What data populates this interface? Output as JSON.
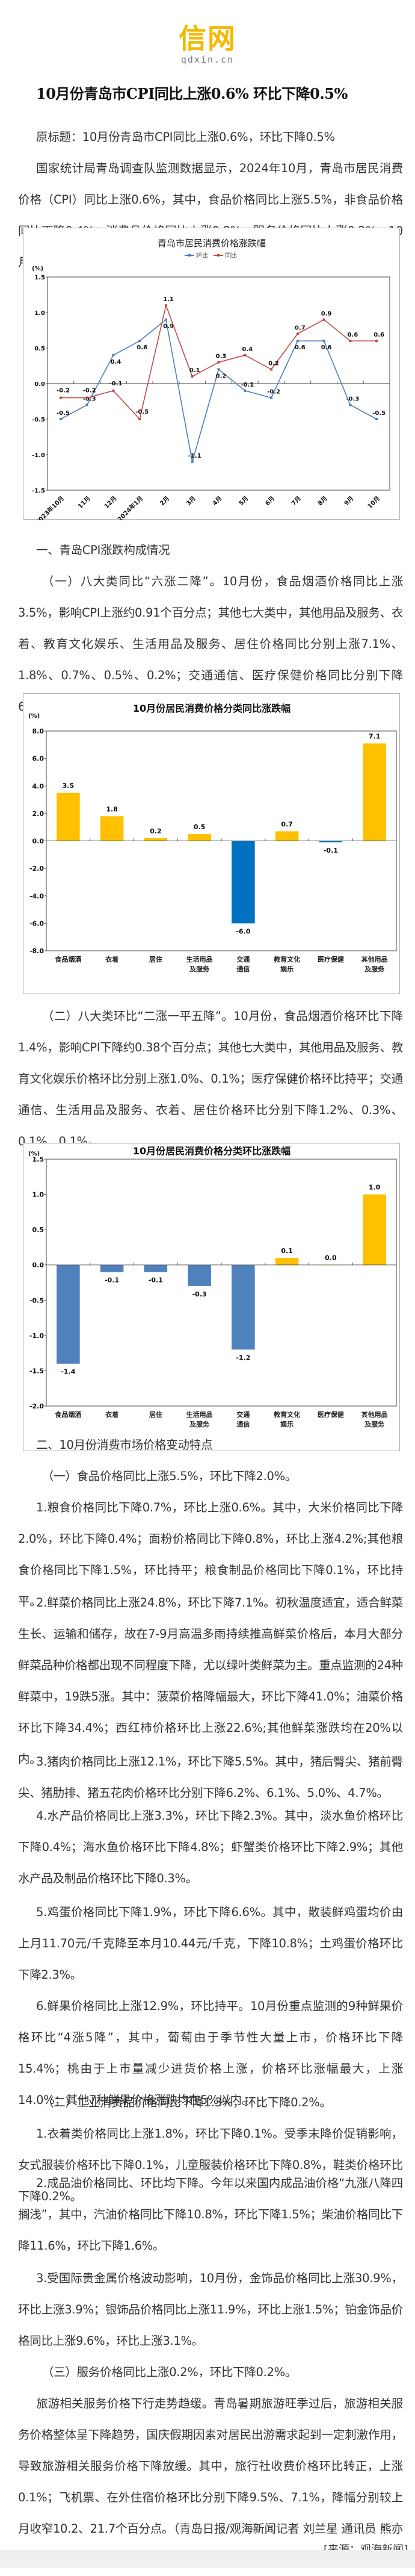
{
  "logo": {
    "mark": "信网",
    "domain": "qdxin.cn",
    "color": "#f5b800"
  },
  "article": {
    "title": "10月份青岛市CPI同比上涨0.6% 环比下降0.5%",
    "original_title": "原标题：10月份青岛市CPI同比上涨0.6%，环比下降0.5%",
    "intro": "国家统计局青岛调查队监测数据显示，2024年10月，青岛市居民消费价格（CPI）同比上涨0.6%，其中，食品价格同比上涨5.5%，非食品价格同比下降0.4%；消费品价格同比上涨0.8%，服务价格同比上涨0.2%。10月份青岛市CPI环比下降0.5%。",
    "section1_heading": "一、青岛CPI涨跌构成情况",
    "section1_p1": "（一）八大类同比“六涨二降”。10月份，食品烟酒价格同比上涨3.5%，影响CPI上涨约0.91个百分点；其他七大类中，其他用品及服务、衣着、教育文化娱乐、生活用品及服务、居住价格同比分别上涨7.1%、1.8%、0.7%、0.5%、0.2%；交通通信、医疗保健价格同比分别下降6.0%、0.1%。",
    "section1_p2": "（二）八大类环比“二涨一平五降”。10月份，食品烟酒价格环比下降1.4%，影响CPI下降约0.38个百分点；其他七大类中，其他用品及服务、教育文化娱乐价格环比分别上涨1.0%、0.1%；医疗保健价格环比持平；交通通信、生活用品及服务、衣着、居住价格环比分别下降1.2%、0.3%、0.1%、0.1%。",
    "section2_heading": "二、10月份消费市场价格变动特点",
    "food_heading": "（一）食品价格同比上涨5.5%，环比下降2.0%。",
    "food_1": "1.粮食价格同比下降0.7%，环比上涨0.6%。其中，大米价格同比下降2.0%，环比下降0.4%；面粉价格同比下降0.8%，环比上涨4.2%;其他粮食价格同比下降1.5%，环比持平；粮食制品价格同比下降0.1%，环比持平。",
    "food_2": "2.鲜菜价格同比上涨24.8%，环比下降7.1%。初秋温度适宜，适合鲜菜生长、运输和储存，故在7-9月高温多雨持续推高鲜菜价格后，本月大部分鲜菜品种价格都出现不同程度下降，尤以绿叶类鲜菜为主。重点监测的24种鲜菜中，19跌5涨。其中：菠菜价格降幅最大，环比下降41.0%；油菜价格环比下降34.4%；西红柿价格环比上涨22.6%;其他鲜菜涨跌均在20%以内。",
    "food_3": "3.猪肉价格同比上涨12.1%，环比下降5.5%。其中，猪后臀尖、猪前臀尖、猪肋排、猪五花肉价格环比分别下降6.2%、6.1%、5.0%、4.7%。",
    "food_4": "4.水产品价格同比上涨3.3%，环比下降2.3%。其中，淡水鱼价格环比下降0.4%；海水鱼价格环比下降4.8%；虾蟹类价格环比下降2.9%；其他水产品及制品价格环比下降0.3%。",
    "food_5": "5.鸡蛋价格同比下降1.9%，环比下降6.6%。其中，散装鲜鸡蛋均价由上月11.70元/千克降至本月10.44元/千克，下降10.8%；土鸡蛋价格环比下降2.3%。",
    "food_6": "6.鲜果价格同比上涨12.9%，环比持平。10月份重点监测的9种鲜果价格环比“4涨5降”，其中，葡萄由于季节性大量上市，价格环比下降15.4%；桃由于上市量减少进货价格上涨，价格环比涨幅最大，上涨14.0%；其他7种鲜果价格涨跌均在5%以内。",
    "industrial_heading": "（二）工业消费品价格同比下降1.3%，环比下降0.2%。",
    "industrial_1": "1.衣着类价格同比上涨1.8%，环比下降0.1%。受季末降价促销影响，女式服装价格环比下降0.1%，儿童服装价格环比下降0.8%，鞋类价格环比下降0.2%。",
    "industrial_2": "2.成品油价格同比、环比均下降。今年以来国内成品油价格“九涨八降四搁浅”，其中，汽油价格同比下降10.8%，环比下降1.5%；柴油价格同比下降11.6%，环比下降1.6%。",
    "industrial_3": "3.受国际贵金属价格波动影响，10月份，金饰品价格同比上涨30.9%，环比上涨3.9%；银饰品价格同比上涨11.9%，环比上涨1.5%；铂金饰品价格同比上涨9.6%，环比上涨3.1%。",
    "service_heading": "（三）服务价格同比上涨0.2%，环比下降0.2%。",
    "service_1": "旅游相关服务价格下行走势趋缓。青岛暑期旅游旺季过后，旅游相关服务价格整体呈下降趋势，国庆假期因素对居民出游需求起到一定刺激作用，导致旅游相关服务价格下降放缓。其中，旅行社收费价格环比转正，上涨0.1%；飞机票、在外住宿价格环比分别下降9.5%、7.1%，降幅分别较上月收窄10.2、21.7个百分点。（青岛日报/观海新闻记者 刘兰星 通讯员 熊亦民）",
    "source": "[来源：观海新闻]"
  },
  "chart_data": [
    {
      "type": "line",
      "title": "青岛市居民消费价格涨跌幅",
      "ylabel": "(%)",
      "ylim": [
        -1.5,
        1.5
      ],
      "yticks": [
        "1.5",
        "1.0",
        "0.5",
        "0.0",
        "-0.5",
        "-1.0",
        "-1.5"
      ],
      "legend_position": "top",
      "categories": [
        "2023年10月",
        "11月",
        "12月",
        "2024年1月",
        "2月",
        "3月",
        "4月",
        "5月",
        "6月",
        "7月",
        "8月",
        "9月",
        "10月"
      ],
      "series": [
        {
          "name": "环比",
          "color": "#4a7ebb",
          "values": [
            -0.5,
            -0.3,
            0.4,
            0.6,
            0.9,
            -1.1,
            0.2,
            -0.1,
            -0.2,
            0.6,
            0.6,
            -0.3,
            -0.5
          ]
        },
        {
          "name": "同比",
          "color": "#be4b48",
          "values": [
            -0.2,
            -0.2,
            -0.1,
            -0.5,
            1.1,
            0.1,
            0.3,
            0.4,
            0.2,
            0.7,
            0.9,
            0.6,
            0.6
          ]
        }
      ]
    },
    {
      "type": "bar",
      "title": "10月份居民消费价格分类同比涨跌幅",
      "ylabel": "(%)",
      "ylim": [
        -8.0,
        8.0
      ],
      "yticks": [
        "8.0",
        "6.0",
        "4.0",
        "2.0",
        "0.0",
        "-2.0",
        "-4.0",
        "-6.0",
        "-8.0"
      ],
      "categories": [
        "食品烟酒",
        "衣着",
        "居住",
        "生活用品\n及服务",
        "交通\n通信",
        "教育文化\n娱乐",
        "医疗保健",
        "其他用品\n及服务"
      ],
      "values": [
        3.5,
        1.8,
        0.2,
        0.5,
        -6.0,
        0.7,
        -0.1,
        7.1
      ],
      "labels": [
        "3.5",
        "1.8",
        "0.2",
        "0.5",
        "-6.0",
        "0.7",
        "-0.1",
        "7.1"
      ],
      "positive_color": "#ffc000",
      "negative_color": "#0070c0"
    },
    {
      "type": "bar",
      "title": "10月份居民消费价格分类环比涨跌幅",
      "ylabel": "(%)",
      "ylim": [
        -2.0,
        1.5
      ],
      "yticks": [
        "1.5",
        "1.0",
        "0.5",
        "0.0",
        "-0.5",
        "-1.0",
        "-1.5",
        "-2.0"
      ],
      "categories": [
        "食品烟酒",
        "衣着",
        "居住",
        "生活用品\n及服务",
        "交通\n通信",
        "教育文化\n娱乐",
        "医疗保健",
        "其他用品\n及服务"
      ],
      "values": [
        -1.4,
        -0.1,
        -0.1,
        -0.3,
        -1.2,
        0.1,
        0.0,
        1.0
      ],
      "labels": [
        "-1.4",
        "-0.1",
        "-0.1",
        "-0.3",
        "-1.2",
        "0.1",
        "0.0",
        "1.0"
      ],
      "positive_color": "#ffc000",
      "negative_color": "#4f81bd"
    }
  ]
}
